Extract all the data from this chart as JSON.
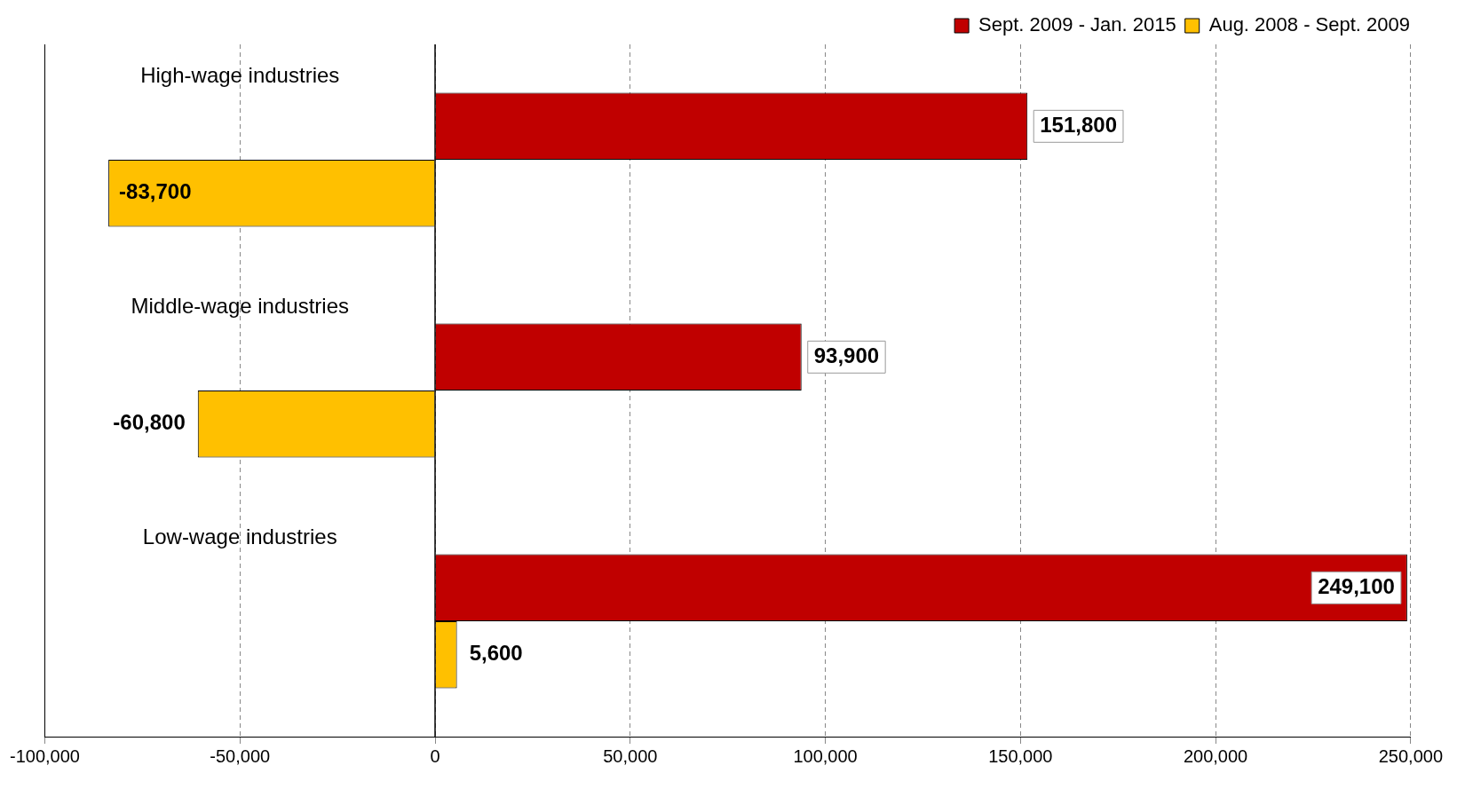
{
  "chart_data": {
    "type": "bar",
    "orientation": "horizontal",
    "categories": [
      "High-wage industries",
      "Middle-wage industries",
      "Low-wage industries"
    ],
    "series": [
      {
        "name": "Sept. 2009 - Jan. 2015",
        "color": "#c00000",
        "values": [
          151800,
          93900,
          249100
        ],
        "value_labels": [
          "151,800",
          "93,900",
          "249,100"
        ]
      },
      {
        "name": "Aug. 2008 - Sept. 2009",
        "color": "#ffc000",
        "values": [
          -83700,
          -60800,
          5600
        ],
        "value_labels": [
          "-83,700",
          "-60,800",
          "5,600"
        ]
      }
    ],
    "xlim": [
      -100000,
      250000
    ],
    "xticks": [
      {
        "value": -100000,
        "label": "-100,000"
      },
      {
        "value": -50000,
        "label": "-50,000"
      },
      {
        "value": 0,
        "label": "0"
      },
      {
        "value": 50000,
        "label": "50,000"
      },
      {
        "value": 100000,
        "label": "100,000"
      },
      {
        "value": 150000,
        "label": "150,000"
      },
      {
        "value": 200000,
        "label": "200,000"
      },
      {
        "value": 250000,
        "label": "250,000"
      }
    ],
    "ref_lines": [
      {
        "axis": "x",
        "value": 0,
        "color": "#000000",
        "line_style": "solid"
      }
    ],
    "grid": "x",
    "legend": "top right"
  }
}
